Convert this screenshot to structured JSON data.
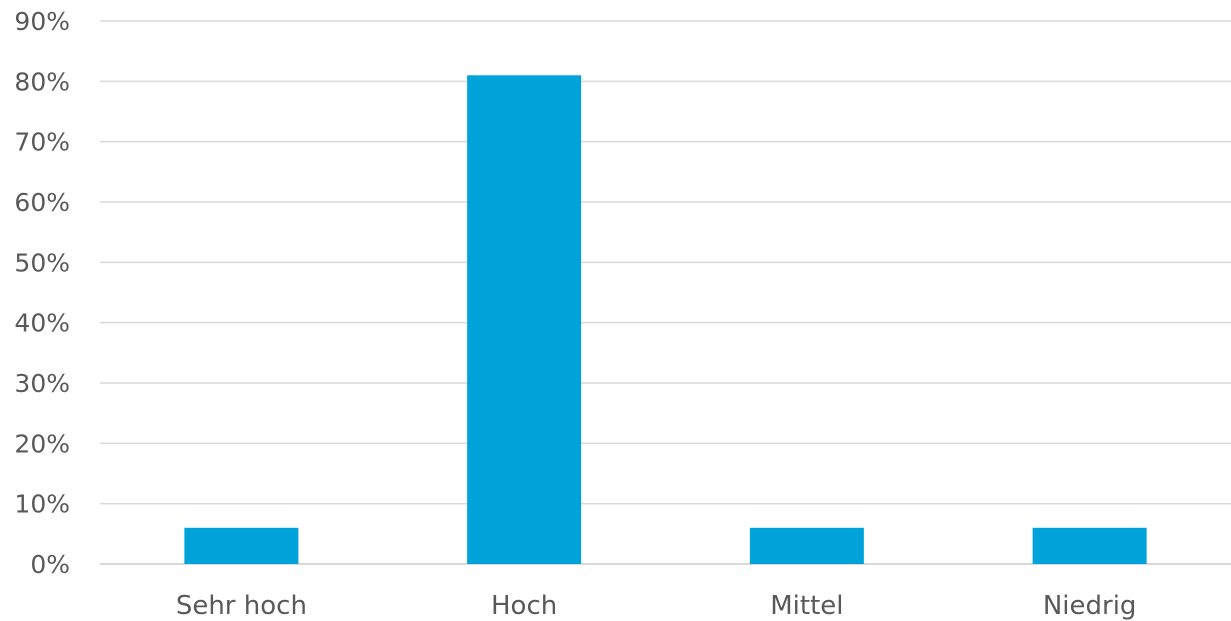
{
  "chart_data": {
    "type": "bar",
    "categories": [
      "Sehr hoch",
      "Hoch",
      "Mittel",
      "Niedrig"
    ],
    "values": [
      0.06,
      0.81,
      0.06,
      0.06
    ],
    "y_ticks": [
      "0%",
      "10%",
      "20%",
      "30%",
      "40%",
      "50%",
      "60%",
      "70%",
      "80%",
      "90%"
    ],
    "ylim": [
      0,
      0.9
    ],
    "grid": true,
    "legend": "none",
    "title": "",
    "xlabel": "",
    "ylabel": "",
    "colors": {
      "bar": "#00A3D9",
      "grid": "#D9D9D9",
      "text": "#595959"
    }
  }
}
